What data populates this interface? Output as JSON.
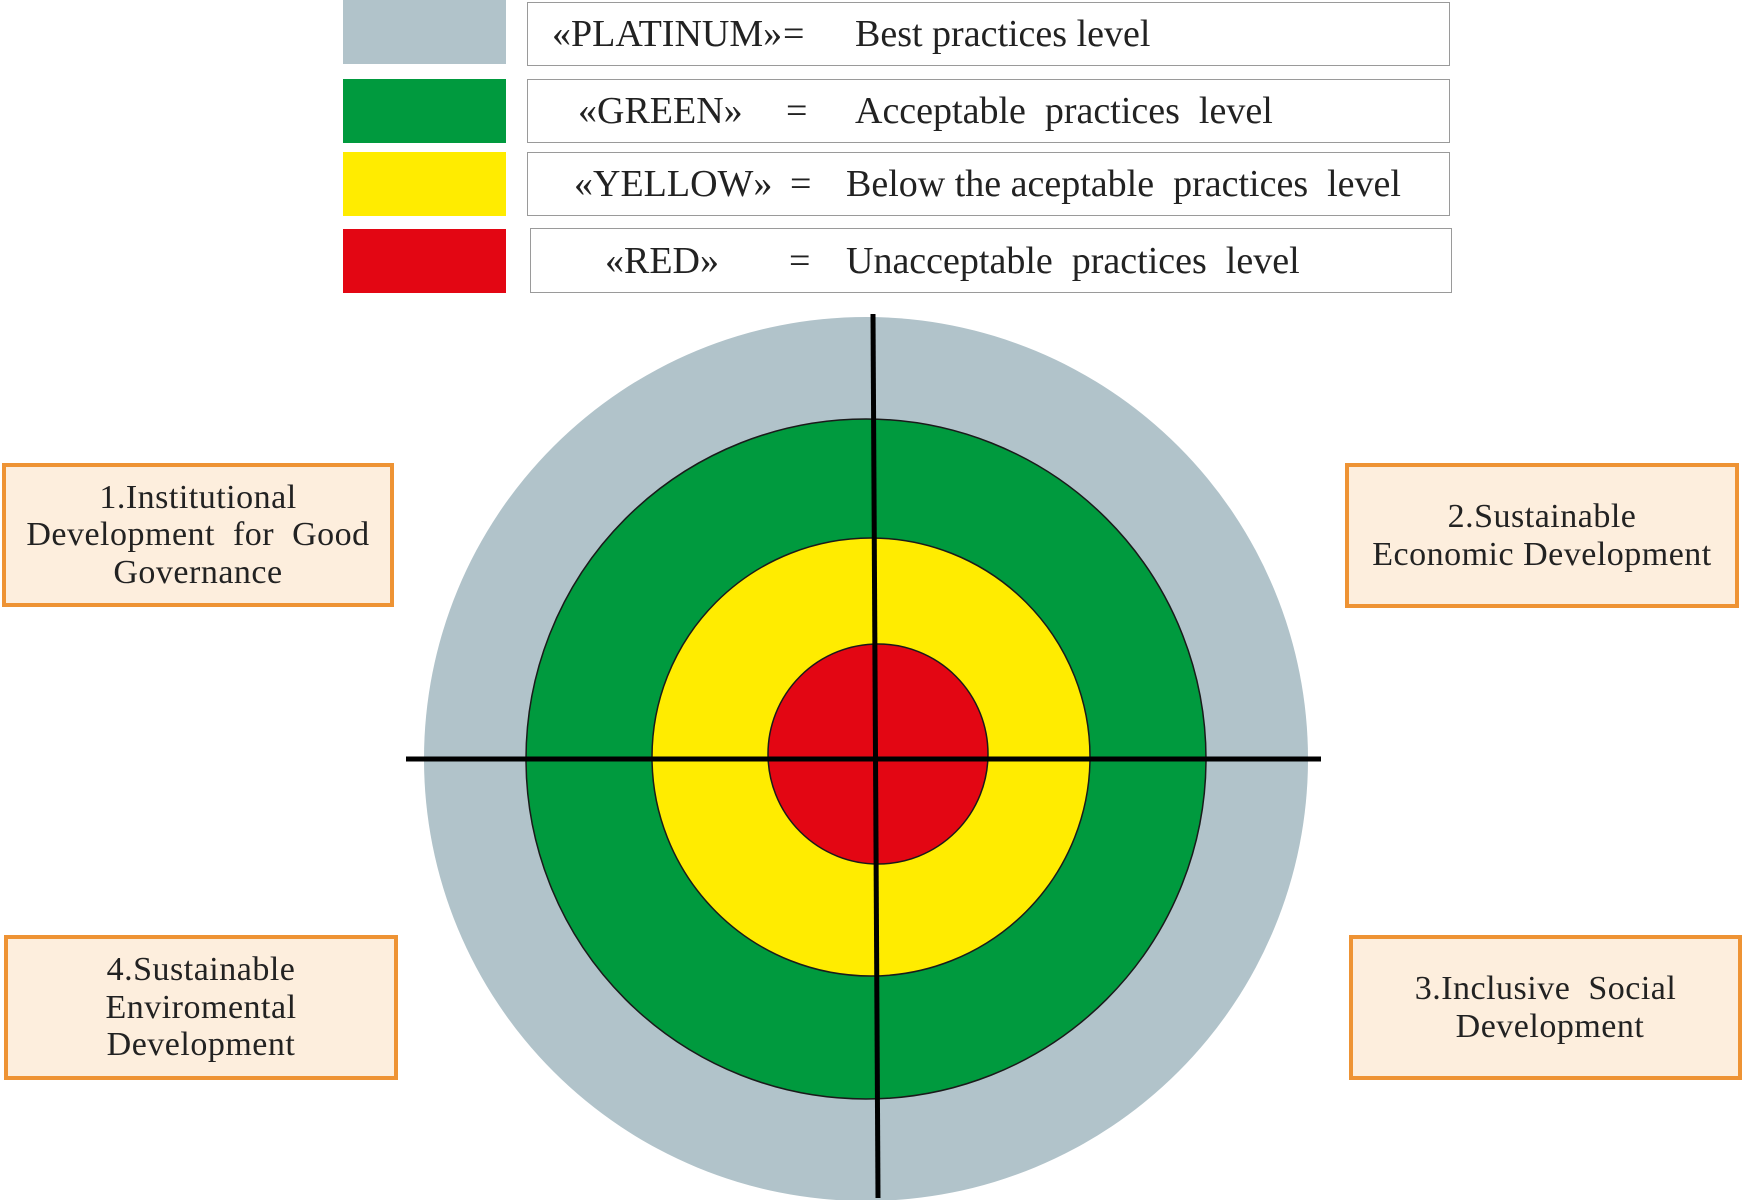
{
  "legend": [
    {
      "key": "«PLATINUM»",
      "eq": "=",
      "desc": "Best practices level",
      "color": "#b1c3ca"
    },
    {
      "key": "«GREEN»",
      "eq": "=",
      "desc": "Acceptable  practices  level",
      "color": "#009a3e"
    },
    {
      "key": "«YELLOW»",
      "eq": "=",
      "desc": "Below the aceptable  practices  level",
      "color": "#ffec00"
    },
    {
      "key": "«RED»",
      "eq": "=",
      "desc": "Unacceptable  practices  level",
      "color": "#e30613"
    }
  ],
  "quadrants": {
    "q1": {
      "lines": [
        "1.Institutional",
        "Development  for  Good",
        "Governance"
      ]
    },
    "q2": {
      "lines": [
        "2.Sustainable",
        "Economic Development"
      ]
    },
    "q3": {
      "lines": [
        "3.Inclusive  Social",
        " Development"
      ]
    },
    "q4": {
      "lines": [
        "4.Sustainable",
        "Enviromental",
        "Development"
      ]
    }
  },
  "rings": {
    "platinum_color": "#b1c3ca",
    "green_color": "#009a3e",
    "yellow_color": "#ffec00",
    "red_color": "#e30613",
    "axis_color": "#000000",
    "quadrant_border_color": "#ee9334",
    "quadrant_fill_color": "#fdeedd"
  }
}
